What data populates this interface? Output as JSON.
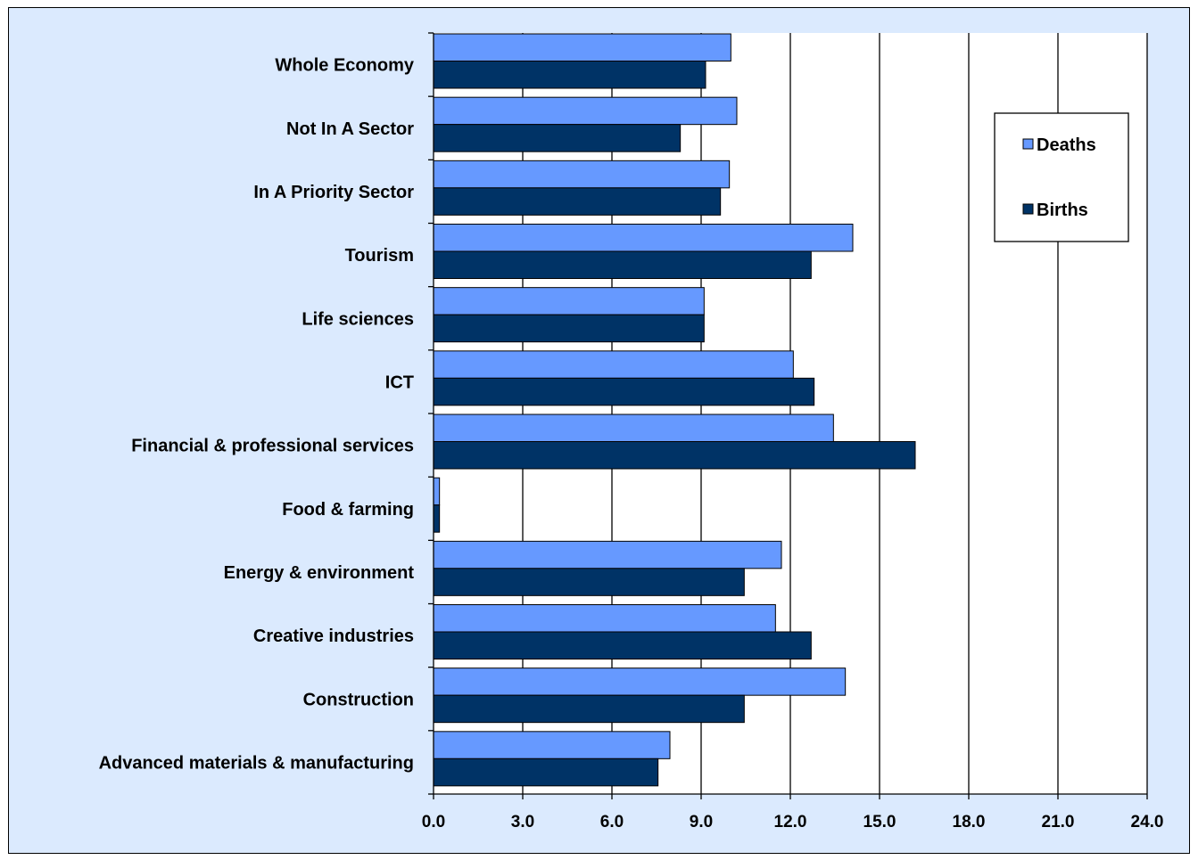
{
  "chart_data": {
    "type": "bar",
    "orientation": "horizontal",
    "title": "",
    "xlabel": "",
    "ylabel": "",
    "categories": [
      "Whole Economy",
      "Not In A Sector",
      "In A Priority Sector",
      "Tourism",
      "Life sciences",
      "ICT",
      "Financial & professional services",
      "Food & farming",
      "Energy & environment",
      "Creative industries",
      "Construction",
      "Advanced materials & manufacturing"
    ],
    "series": [
      {
        "name": "Deaths",
        "color": "#6699ff",
        "values": [
          10.0,
          10.2,
          9.95,
          14.1,
          9.1,
          12.1,
          13.45,
          0.2,
          11.7,
          11.5,
          13.85,
          7.95
        ]
      },
      {
        "name": "Births",
        "color": "#003366",
        "values": [
          9.15,
          8.3,
          9.65,
          12.7,
          9.1,
          12.8,
          16.2,
          0.2,
          10.45,
          12.7,
          10.45,
          7.55
        ]
      }
    ],
    "xlim": [
      0,
      24
    ],
    "x_ticks": [
      "0.0",
      "3.0",
      "6.0",
      "9.0",
      "12.0",
      "15.0",
      "18.0",
      "21.0",
      "24.0"
    ],
    "grid": "vertical",
    "legend": {
      "position": "top-right",
      "items": [
        "Deaths",
        "Births"
      ]
    },
    "colors": {
      "background": "#dbeafe",
      "plot_background": "#ffffff",
      "deaths": "#6699ff",
      "births": "#003366"
    }
  }
}
